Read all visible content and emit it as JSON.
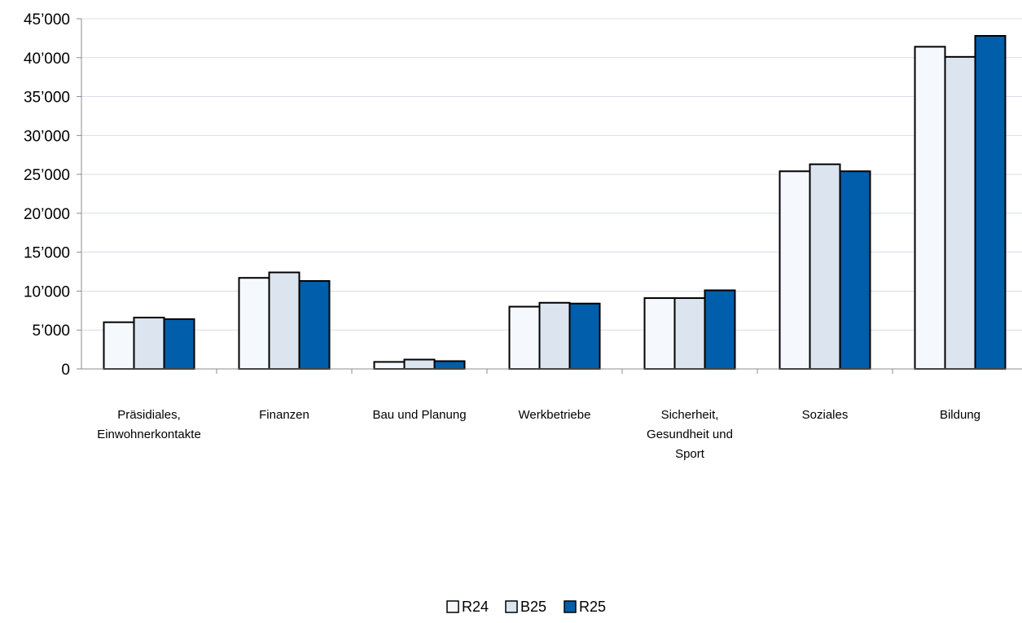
{
  "chart_data": {
    "type": "bar",
    "categories": [
      [
        "Präsidiales,",
        "Einwohnerkontakte"
      ],
      [
        "Finanzen"
      ],
      [
        "Bau und Planung"
      ],
      [
        "Werkbetriebe"
      ],
      [
        "Sicherheit,",
        "Gesundheit und",
        "Sport"
      ],
      [
        "Soziales"
      ],
      [
        "Bildung"
      ]
    ],
    "series": [
      {
        "name": "R24",
        "color": "#F5F8FC",
        "values": [
          6000,
          11700,
          900,
          8000,
          9100,
          25400,
          41400
        ]
      },
      {
        "name": "B25",
        "color": "#DCE4F0",
        "values": [
          6600,
          12400,
          1200,
          8500,
          9100,
          26300,
          40100
        ]
      },
      {
        "name": "R25",
        "color": "#005EAA",
        "values": [
          6400,
          11300,
          1000,
          8400,
          10100,
          25400,
          42800
        ]
      }
    ],
    "ylim": [
      0,
      45000
    ],
    "yticks": [
      "0",
      "5’000",
      "10’000",
      "15’000",
      "20’000",
      "25’000",
      "30’000",
      "35’000",
      "40’000",
      "45’000"
    ],
    "grid": true,
    "legend_position": "bottom-center",
    "gridline_color": "#D9DCEB",
    "axis_color": "#8C8C8C",
    "bar_outline_color": "#000000"
  }
}
